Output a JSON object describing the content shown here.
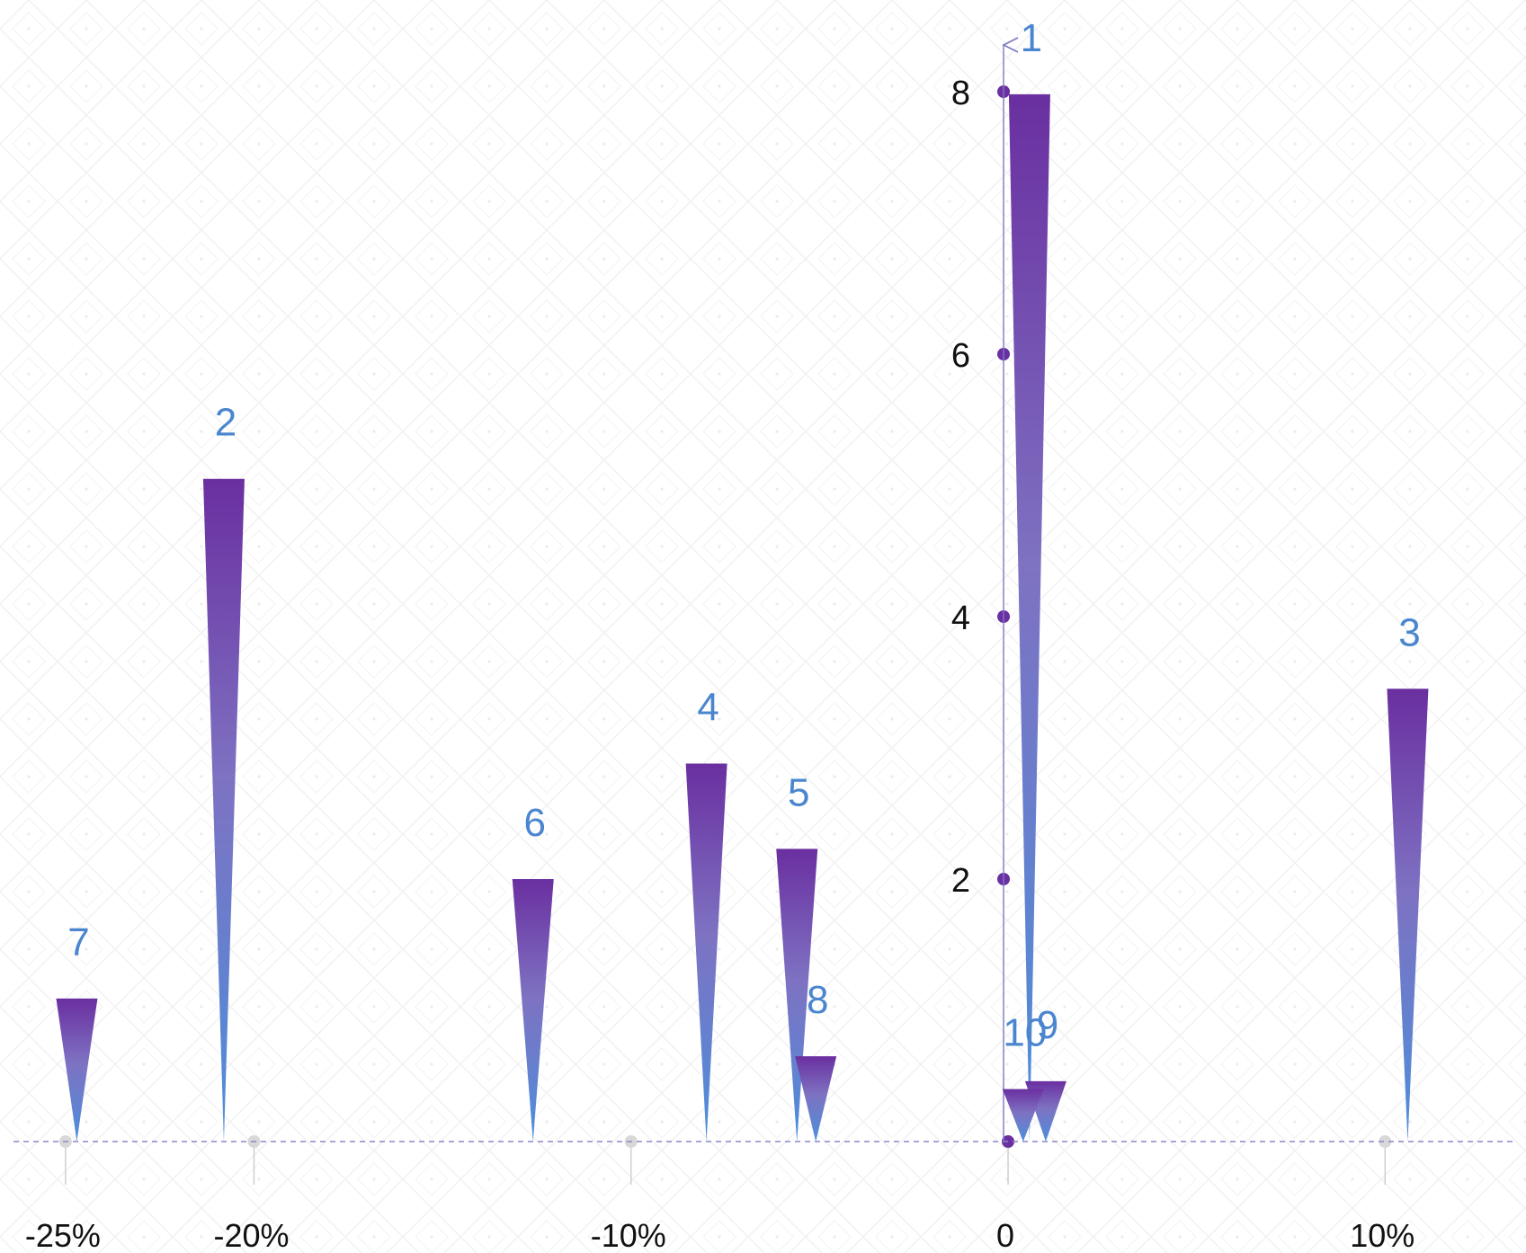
{
  "chart_data": {
    "type": "bar",
    "title": "",
    "xlabel": "",
    "ylabel": "",
    "xlim": [
      -0.2638,
      0.1338
    ],
    "ylim": [
      0,
      8
    ],
    "grid": false,
    "legend": "none",
    "x_ticks": [
      {
        "value": -0.25,
        "label": "-25%"
      },
      {
        "value": -0.2,
        "label": "-20%"
      },
      {
        "value": -0.1,
        "label": "-10%"
      },
      {
        "value": 0,
        "label": "0"
      },
      {
        "value": 0.1,
        "label": "10%"
      }
    ],
    "y_ticks": [
      {
        "value": 0,
        "label": ""
      },
      {
        "value": 2,
        "label": "2"
      },
      {
        "value": 4,
        "label": "4"
      },
      {
        "value": 6,
        "label": "6"
      },
      {
        "value": 8,
        "label": "8"
      }
    ],
    "points": [
      {
        "label": "1",
        "x": 0.0057,
        "y": 7.98
      },
      {
        "label": "2",
        "x": -0.208,
        "y": 5.05
      },
      {
        "label": "3",
        "x": 0.106,
        "y": 3.45
      },
      {
        "label": "4",
        "x": -0.08,
        "y": 2.88
      },
      {
        "label": "5",
        "x": -0.056,
        "y": 2.23
      },
      {
        "label": "6",
        "x": -0.126,
        "y": 2.0
      },
      {
        "label": "7",
        "x": -0.247,
        "y": 1.09
      },
      {
        "label": "8",
        "x": -0.051,
        "y": 0.65
      },
      {
        "label": "9",
        "x": 0.01,
        "y": 0.46
      },
      {
        "label": "10",
        "x": 0.004,
        "y": 0.4
      }
    ],
    "colors": {
      "bar_top": "#6a2fa0",
      "bar_mid": "#7e72c2",
      "bar_bottom": "#4b8fdb",
      "data_label": "#4a86cf",
      "axis": "#7b78c4",
      "y_dot": "#6a2fa0",
      "x_dot": "#d8d8d8",
      "tick_line": "#cccccc",
      "baseline": "#8e86c8"
    }
  }
}
